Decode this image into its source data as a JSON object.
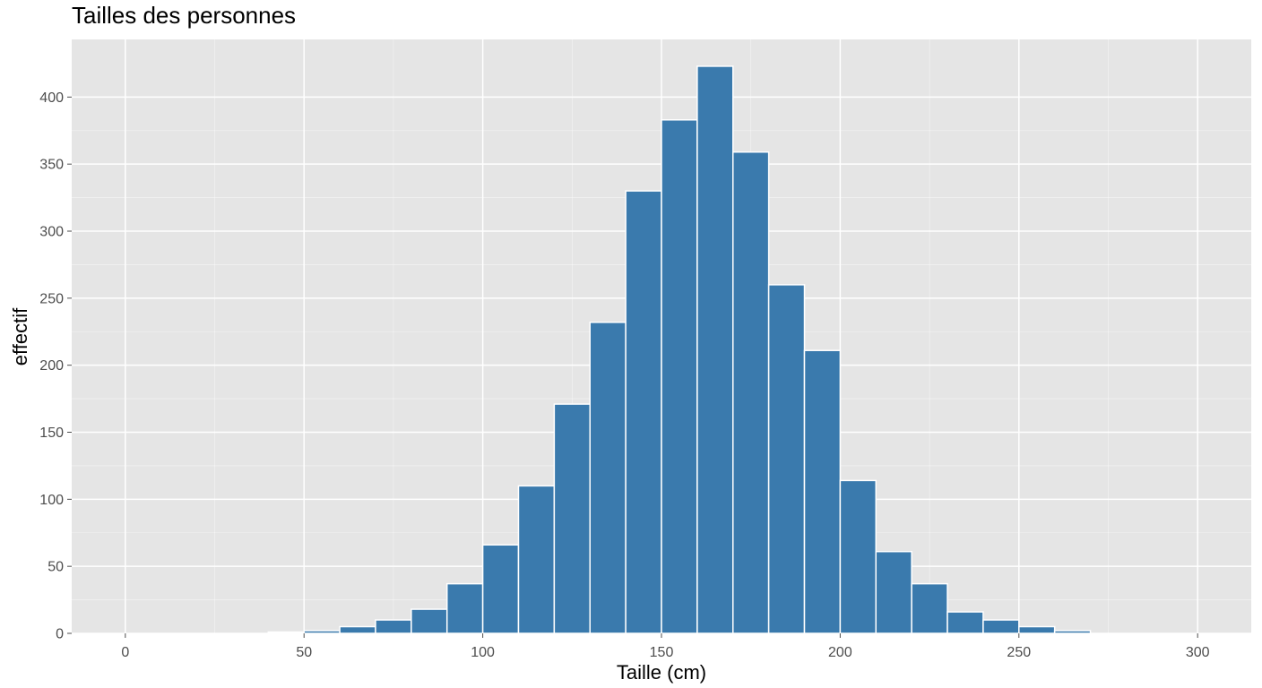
{
  "chart_data": {
    "type": "bar",
    "title": "Tailles des personnes",
    "xlabel": "Taille (cm)",
    "ylabel": "effectif",
    "xlim": [
      -15,
      315
    ],
    "ylim": [
      0,
      443
    ],
    "bin_width": 10,
    "x_ticks": [
      0,
      50,
      100,
      150,
      200,
      250,
      300
    ],
    "y_ticks": [
      0,
      50,
      100,
      150,
      200,
      250,
      300,
      350,
      400
    ],
    "grid": true,
    "legend": "none",
    "colors": {
      "bar_fill": "#3a7aad",
      "bar_outline": "#ffffff",
      "panel_background": "#e5e5e5",
      "grid_line": "#ffffff",
      "tick_color": "#4d4d4d"
    },
    "bins": [
      {
        "x": 40,
        "value": 1
      },
      {
        "x": 50,
        "value": 2
      },
      {
        "x": 60,
        "value": 5
      },
      {
        "x": 70,
        "value": 10
      },
      {
        "x": 80,
        "value": 18
      },
      {
        "x": 90,
        "value": 37
      },
      {
        "x": 100,
        "value": 66
      },
      {
        "x": 110,
        "value": 110
      },
      {
        "x": 120,
        "value": 171
      },
      {
        "x": 130,
        "value": 232
      },
      {
        "x": 140,
        "value": 330
      },
      {
        "x": 150,
        "value": 383
      },
      {
        "x": 160,
        "value": 423
      },
      {
        "x": 170,
        "value": 359
      },
      {
        "x": 180,
        "value": 260
      },
      {
        "x": 190,
        "value": 211
      },
      {
        "x": 200,
        "value": 114
      },
      {
        "x": 210,
        "value": 61
      },
      {
        "x": 220,
        "value": 37
      },
      {
        "x": 230,
        "value": 16
      },
      {
        "x": 240,
        "value": 10
      },
      {
        "x": 250,
        "value": 5
      },
      {
        "x": 260,
        "value": 2
      }
    ]
  }
}
